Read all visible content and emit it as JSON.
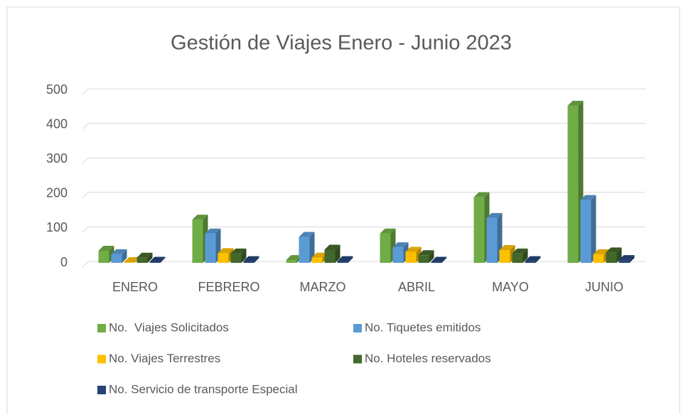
{
  "chart_data": {
    "type": "bar3d",
    "title": "Gestión de Viajes Enero - Junio 2023",
    "categories": [
      "ENERO",
      "FEBRERO",
      "MARZO",
      "ABRIL",
      "MAYO",
      "JUNIO"
    ],
    "series": [
      {
        "name": "No.  Viajes Solicitados",
        "color": "#70ad47",
        "values": [
          35,
          125,
          8,
          85,
          190,
          455
        ]
      },
      {
        "name": "No. Tiquetes emitidos",
        "color": "#5b9bd5",
        "values": [
          25,
          85,
          75,
          45,
          130,
          182
        ]
      },
      {
        "name": "No. Viajes Terrestres",
        "color": "#ffc000",
        "values": [
          2,
          28,
          15,
          32,
          37,
          25
        ]
      },
      {
        "name": "No. Hoteles reservados",
        "color": "#43682b",
        "values": [
          15,
          27,
          38,
          22,
          27,
          30
        ]
      },
      {
        "name": "No. Servicio de transporte Especial",
        "color": "#264478",
        "values": [
          3,
          5,
          5,
          3,
          5,
          8
        ]
      }
    ],
    "ylim": [
      0,
      500
    ],
    "yticks": [
      0,
      100,
      200,
      300,
      400,
      500
    ],
    "grid": true,
    "legend": "bottom"
  }
}
